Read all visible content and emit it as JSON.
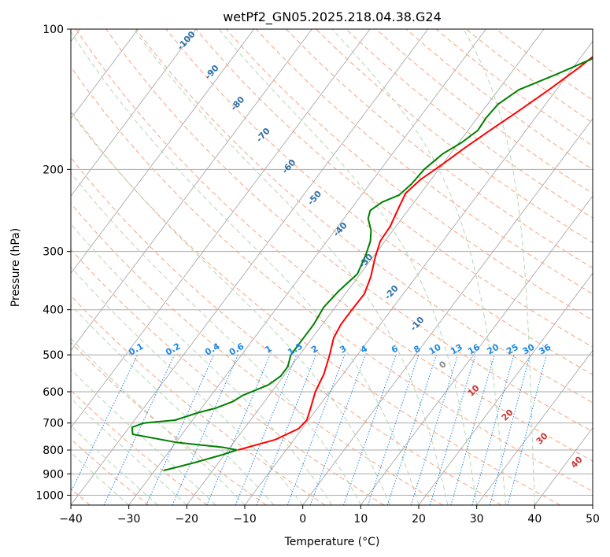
{
  "chart_data": {
    "type": "line",
    "title": "wetPf2_GN05.2025.218.04.38.G24",
    "xlabel": "Temperature (°C)",
    "ylabel": "Pressure (hPa)",
    "xlim": [
      -40,
      50
    ],
    "ylim": [
      1050,
      100
    ],
    "yscale": "log",
    "grid": true,
    "x_ticks": [
      -40,
      -30,
      -20,
      -10,
      0,
      10,
      20,
      30,
      40,
      50
    ],
    "y_ticks": [
      1000,
      900,
      800,
      700,
      600,
      500,
      400,
      300,
      200,
      100
    ],
    "series": [
      {
        "color": "#ff0000",
        "points": [
          {
            "p": 800,
            "t": -18.3
          },
          {
            "p": 760,
            "t": -13.2
          },
          {
            "p": 720,
            "t": -10.6
          },
          {
            "p": 690,
            "t": -10.3
          },
          {
            "p": 650,
            "t": -11.2
          },
          {
            "p": 600,
            "t": -12.5
          },
          {
            "p": 550,
            "t": -13.3
          },
          {
            "p": 500,
            "t": -14.8
          },
          {
            "p": 460,
            "t": -16.3
          },
          {
            "p": 430,
            "t": -16.8
          },
          {
            "p": 400,
            "t": -16.8
          },
          {
            "p": 370,
            "t": -16.7
          },
          {
            "p": 340,
            "t": -17.8
          },
          {
            "p": 310,
            "t": -19.5
          },
          {
            "p": 285,
            "t": -20.8
          },
          {
            "p": 265,
            "t": -21.0
          },
          {
            "p": 240,
            "t": -22.0
          },
          {
            "p": 225,
            "t": -22.6
          },
          {
            "p": 210,
            "t": -21.8
          },
          {
            "p": 195,
            "t": -20.0
          },
          {
            "p": 180,
            "t": -18.3
          },
          {
            "p": 165,
            "t": -16.2
          },
          {
            "p": 150,
            "t": -13.8
          },
          {
            "p": 135,
            "t": -11.3
          },
          {
            "p": 120,
            "t": -8.8
          },
          {
            "p": 110,
            "t": -7.3
          },
          {
            "p": 100,
            "t": -3.2
          }
        ]
      },
      {
        "color": "#008000",
        "points": [
          {
            "p": 885,
            "t": -28.5
          },
          {
            "p": 870,
            "t": -26.5
          },
          {
            "p": 850,
            "t": -24.0
          },
          {
            "p": 820,
            "t": -20.5
          },
          {
            "p": 800,
            "t": -18.5
          },
          {
            "p": 790,
            "t": -21.0
          },
          {
            "p": 770,
            "t": -30.0
          },
          {
            "p": 740,
            "t": -38.5
          },
          {
            "p": 715,
            "t": -39.5
          },
          {
            "p": 700,
            "t": -38.0
          },
          {
            "p": 690,
            "t": -33.0
          },
          {
            "p": 665,
            "t": -30.0
          },
          {
            "p": 650,
            "t": -27.5
          },
          {
            "p": 630,
            "t": -25.5
          },
          {
            "p": 610,
            "t": -24.5
          },
          {
            "p": 580,
            "t": -21.5
          },
          {
            "p": 555,
            "t": -20.5
          },
          {
            "p": 530,
            "t": -20.5
          },
          {
            "p": 500,
            "t": -21.5
          },
          {
            "p": 470,
            "t": -21.5
          },
          {
            "p": 430,
            "t": -21.5
          },
          {
            "p": 395,
            "t": -22.0
          },
          {
            "p": 365,
            "t": -21.5
          },
          {
            "p": 335,
            "t": -20.5
          },
          {
            "p": 305,
            "t": -21.5
          },
          {
            "p": 285,
            "t": -22.5
          },
          {
            "p": 270,
            "t": -23.8
          },
          {
            "p": 255,
            "t": -25.8
          },
          {
            "p": 245,
            "t": -26.5
          },
          {
            "p": 235,
            "t": -25.5
          },
          {
            "p": 227,
            "t": -23.5
          },
          {
            "p": 215,
            "t": -22.8
          },
          {
            "p": 200,
            "t": -22.5
          },
          {
            "p": 185,
            "t": -21.3
          },
          {
            "p": 175,
            "t": -19.5
          },
          {
            "p": 165,
            "t": -18.3
          },
          {
            "p": 155,
            "t": -18.5
          },
          {
            "p": 145,
            "t": -18.2
          },
          {
            "p": 135,
            "t": -16.5
          },
          {
            "p": 125,
            "t": -12.0
          },
          {
            "p": 115,
            "t": -7.5
          },
          {
            "p": 105,
            "t": -5.5
          },
          {
            "p": 100,
            "t": -3.5
          }
        ]
      }
    ],
    "dry_adiabat_labels": [
      "-100",
      "-90",
      "-80",
      "-70",
      "-60",
      "-50",
      "-40",
      "-30",
      "-20",
      "-10"
    ],
    "moist_adiabat_labels": [
      "0",
      "10",
      "20",
      "30",
      "40"
    ],
    "mixing_ratio_labels": [
      "0.1",
      "0.2",
      "0.4",
      "0.6",
      "1",
      "1.5",
      "2",
      "3",
      "4",
      "6",
      "8",
      "10",
      "13",
      "16",
      "20",
      "25",
      "30",
      "36"
    ],
    "colors": {
      "temperature": "#ff0000",
      "dewpoint": "#008000",
      "isotherm": "#aaaaaa",
      "dry_adiabat": "#f4a582",
      "moist_adiabat": "#b2d8b2",
      "mixing_ratio": "#1e88e5",
      "dry_adiabat_label": "#2c6fa8",
      "moist_adiabat_label": "#cc3333"
    }
  }
}
